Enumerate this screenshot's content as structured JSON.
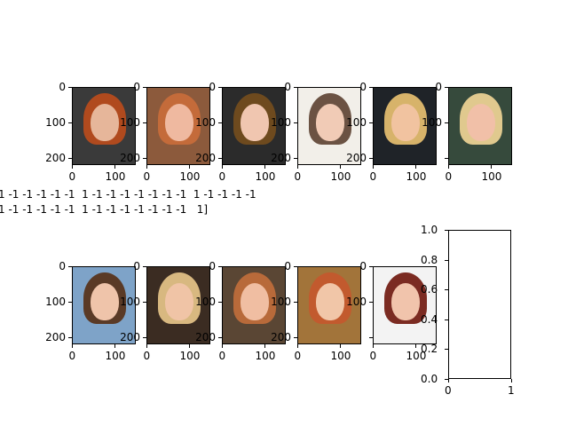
{
  "figure": {
    "subplots": [
      {
        "ytick_top": "0",
        "ytick_mid": "100",
        "ytick_bot": "200",
        "xtick_left": "0",
        "xtick_right": "100",
        "bg": "#3a3a3a",
        "hair": "#b04a1e",
        "skin": "#e6b69a"
      },
      {
        "ytick_top": "0",
        "ytick_mid": "100",
        "ytick_bot": "200",
        "xtick_left": "0",
        "xtick_right": "100",
        "bg": "#8c5a3c",
        "hair": "#c46b3a",
        "skin": "#efb9a0"
      },
      {
        "ytick_top": "0",
        "ytick_mid": "100",
        "ytick_bot": "200",
        "xtick_left": "0",
        "xtick_right": "100",
        "bg": "#2b2b2b",
        "hair": "#6e4a1e",
        "skin": "#f0c6b0"
      },
      {
        "ytick_top": "0",
        "ytick_mid": "100",
        "ytick_bot": "200",
        "xtick_left": "0",
        "xtick_right": "100",
        "bg": "#f2efe9",
        "hair": "#6b5243",
        "skin": "#f1cbb6"
      },
      {
        "ytick_top": "0",
        "ytick_mid": "100",
        "ytick_bot": "200",
        "xtick_left": "0",
        "xtick_right": "100",
        "bg": "#1f2328",
        "hair": "#d7b36a",
        "skin": "#f1c3a0"
      },
      {
        "ytick_top": "0",
        "ytick_mid": "100",
        "ytick_bot": "",
        "xtick_left": "0",
        "xtick_right": "100",
        "bg": "#364a3c",
        "hair": "#e0c98e",
        "skin": "#f1c0a8"
      },
      {
        "ytick_top": "0",
        "ytick_mid": "100",
        "ytick_bot": "200",
        "xtick_left": "0",
        "xtick_right": "100",
        "bg": "#7ea3c8",
        "hair": "#5a3a26",
        "skin": "#efc4aa"
      },
      {
        "ytick_top": "0",
        "ytick_mid": "100",
        "ytick_bot": "200",
        "xtick_left": "0",
        "xtick_right": "100",
        "bg": "#3b2c22",
        "hair": "#d8b880",
        "skin": "#f0c4a6"
      },
      {
        "ytick_top": "0",
        "ytick_mid": "100",
        "ytick_bot": "200",
        "xtick_left": "0",
        "xtick_right": "100",
        "bg": "#5a4634",
        "hair": "#b86a3a",
        "skin": "#f0bea2"
      },
      {
        "ytick_top": "0",
        "ytick_mid": "100",
        "ytick_bot": "200",
        "xtick_left": "0",
        "xtick_right": "100",
        "bg": "#a2743a",
        "hair": "#c25a2e",
        "skin": "#f1c6a8"
      },
      {
        "ytick_top": "0",
        "ytick_mid": "100",
        "ytick_bot": "",
        "xtick_left": "0",
        "xtick_right": "100",
        "bg": "#f3f3f3",
        "hair": "#7b2b22",
        "skin": "#f1c4ac"
      }
    ],
    "label_text": {
      "line1": "1 -1 -1 -1 -1 -1  1 -1 -1 -1 -1 -1 -1 -1  1 -1 -1 -1 -1",
      "line2": "1 -1 -1 -1 -1 -1  1 -1 -1 -1 -1 -1 -1 -1   1]"
    },
    "empty_axes": {
      "yticks": [
        "1.0",
        "0.8",
        "0.6",
        "0.4",
        "0.2",
        "0.0"
      ],
      "xticks": [
        "0",
        "1"
      ]
    }
  }
}
